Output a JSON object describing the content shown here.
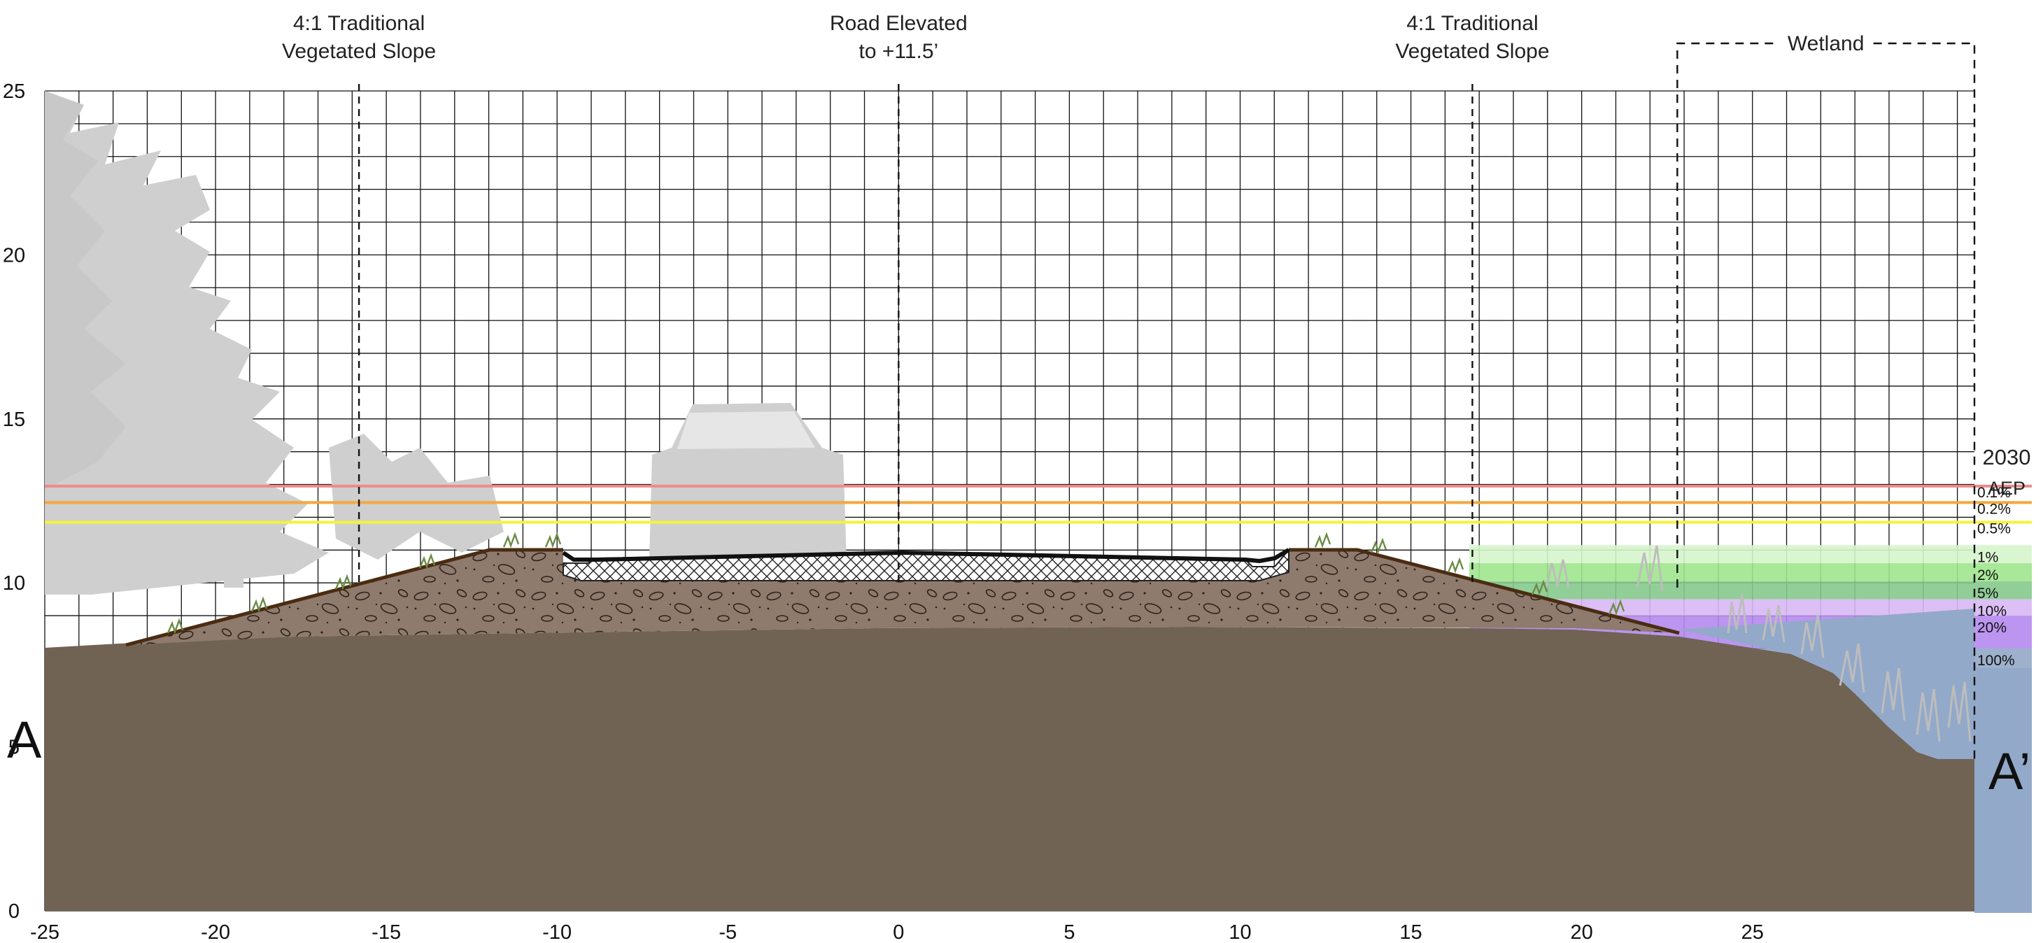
{
  "callouts": [
    {
      "id": "left-slope",
      "lines": [
        "4:1 Traditional",
        "Vegetated Slope"
      ],
      "x_ft": -15.8
    },
    {
      "id": "road",
      "lines": [
        "Road Elevated",
        "to +11.5’"
      ],
      "x_ft": 0
    },
    {
      "id": "right-slope",
      "lines": [
        "4:1 Traditional",
        "Vegetated Slope"
      ],
      "x_ft": 16.8
    }
  ],
  "wetland": {
    "label": "Wetland",
    "x_start_ft": 22.8,
    "x_end_ft": 31.5
  },
  "section_labels": {
    "left": "A",
    "right": "A’"
  },
  "axes": {
    "x_ticks": [
      -25,
      -20,
      -15,
      -10,
      -5,
      0,
      5,
      10,
      15,
      20,
      25
    ],
    "y_ticks": [
      0,
      5,
      10,
      15,
      20,
      25
    ],
    "x_range": [
      -25,
      31.5
    ],
    "y_range": [
      0,
      25
    ]
  },
  "aep": {
    "year": "2030",
    "title": "AEP",
    "levels": [
      {
        "label": "0.1%",
        "elevation": 12.95,
        "color": "#ef8a8a"
      },
      {
        "label": "0.2%",
        "elevation": 12.45,
        "color": "#f2a93b"
      },
      {
        "label": "0.5%",
        "elevation": 11.85,
        "color": "#f6f23a"
      },
      {
        "label": "1%",
        "elevation": 11.15,
        "color": "#d6f5cc"
      },
      {
        "label": "2%",
        "elevation": 10.6,
        "color": "#9fe58d"
      },
      {
        "label": "5%",
        "elevation": 10.05,
        "color": "#86c98c"
      },
      {
        "label": "10%",
        "elevation": 9.5,
        "color": "#d8b8f3"
      },
      {
        "label": "20%",
        "elevation": 9.0,
        "color": "#b589ee"
      },
      {
        "label": "100%",
        "elevation": 8.0,
        "color": "#92a8c8"
      }
    ]
  },
  "colors": {
    "native_ground": "#706354",
    "fill_soil": "#8f7a6e",
    "water": "#93a9c9",
    "tree_silhouette": "#cfcfcf",
    "vegetation": "#6b8b45"
  }
}
